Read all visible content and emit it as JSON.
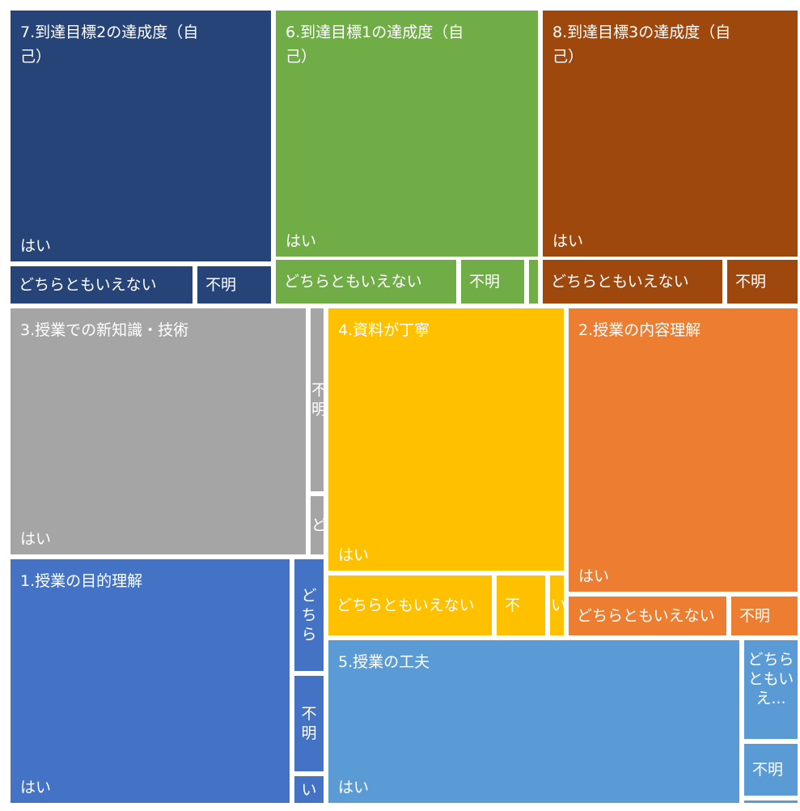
{
  "chart_data": {
    "type": "treemap",
    "groups": [
      {
        "name": "7.到達目標2の達成度（自己）",
        "label": "7.到達目標2の達成度（自\n己）",
        "color": "#264478",
        "items": [
          {
            "name": "はい",
            "value": 103.5
          },
          {
            "name": "どちらともいえない",
            "value": 10
          },
          {
            "name": "不明",
            "value": 3.5
          }
        ]
      },
      {
        "name": "6.到達目標1の達成度（自己）",
        "label": "6.到達目標1の達成度（自\n己）",
        "color": "#70AD47",
        "items": [
          {
            "name": "はい",
            "value": 101.8
          },
          {
            "name": "どちらともいえない",
            "value": 13
          },
          {
            "name": "不明",
            "value": 5
          },
          {
            "name": "",
            "value": 1
          }
        ]
      },
      {
        "name": "8.到達目標3の達成度（自己）",
        "label": "8.到達目標3の達成度（自\n己）",
        "color": "#9E480E",
        "items": [
          {
            "name": "はい",
            "value": 101.5
          },
          {
            "name": "どちらともいえない",
            "value": 13
          },
          {
            "name": "不明",
            "value": 5
          }
        ]
      },
      {
        "name": "3.授業での新知識・技術",
        "label": "3.授業での新知識・技術",
        "color": "#A5A5A5",
        "items": [
          {
            "name": "はい",
            "value": 106
          },
          {
            "name": "不明",
            "value": 7.5
          },
          {
            "name": "ど",
            "value": 5
          }
        ]
      },
      {
        "name": "4.資料が丁寧",
        "label": "4.資料が丁寧",
        "color": "#FFC000",
        "items": [
          {
            "name": "はい",
            "value": 85.5
          },
          {
            "name": "どちらともいえない",
            "value": 9
          },
          {
            "name": "不",
            "value": 2.7
          },
          {
            "name": "い",
            "value": 1
          }
        ]
      },
      {
        "name": "2.授業の内容理解",
        "label": "2.授業の内容理解",
        "color": "#ED7D31",
        "items": [
          {
            "name": "はい",
            "value": 84
          },
          {
            "name": "どちらともいえない",
            "value": 9
          },
          {
            "name": "不明",
            "value": 4
          }
        ]
      },
      {
        "name": "1.授業の目的理解",
        "label": "1.授業の目的理解",
        "color": "#4472C4",
        "items": [
          {
            "name": "はい",
            "value": 104.5
          },
          {
            "name": "どちら",
            "value": 4.7
          },
          {
            "name": "不明",
            "value": 4
          },
          {
            "name": "い",
            "value": 1
          }
        ]
      },
      {
        "name": "5.授業の工夫",
        "label": "5.授業の工夫",
        "color": "#5B9BD5",
        "items": [
          {
            "name": "はい",
            "value": 95
          },
          {
            "name": "どちらともいえ...",
            "value": 4.2
          },
          {
            "name": "不明",
            "value": 2
          },
          {
            "name": "",
            "value": 0.5
          }
        ]
      }
    ]
  }
}
